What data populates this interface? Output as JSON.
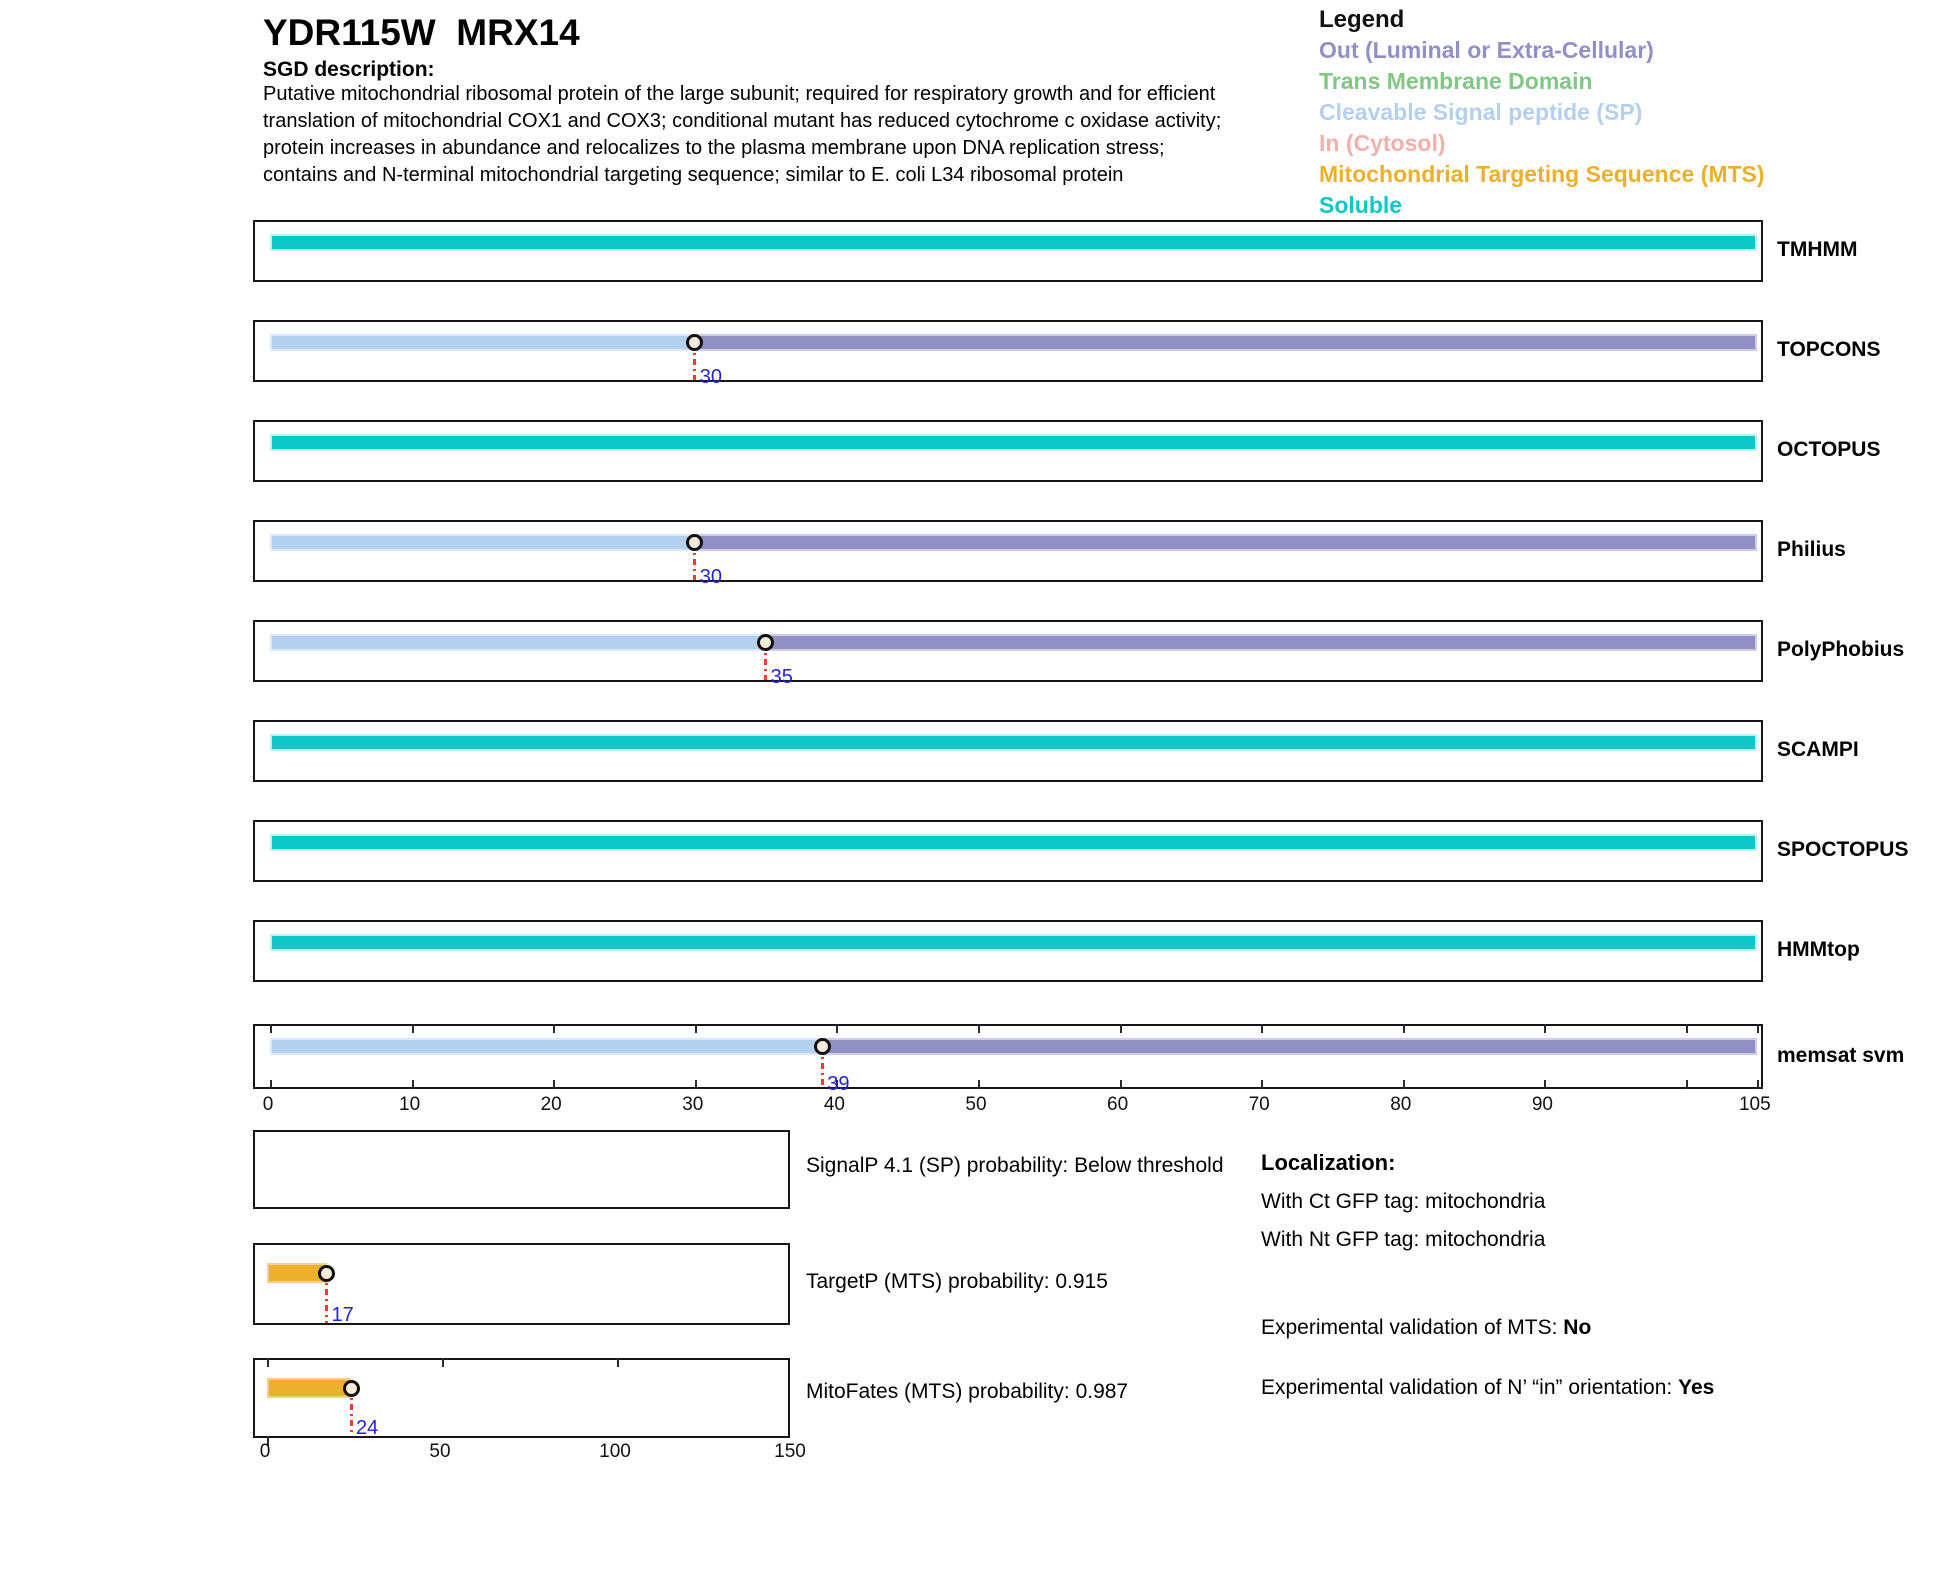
{
  "header": {
    "title": "YDR115W  MRX14",
    "sgd_label": "SGD description:",
    "description": "Putative mitochondrial ribosomal protein of the large subunit; required for respiratory growth and for efficient\ntranslation of mitochondrial COX1 and COX3;  conditional mutant has reduced cytochrome c oxidase activity;\nprotein increases in abundance and relocalizes to the plasma membrane upon DNA replication stress;\ncontains and N-terminal mitochondrial targeting sequence; similar to E. coli L34 ribosomal protein"
  },
  "legend": {
    "heading": "Legend",
    "items": [
      {
        "label": "Out (Luminal or Extra-Cellular)",
        "key": "Out"
      },
      {
        "label": "Trans Membrane Domain",
        "key": "TM"
      },
      {
        "label": "Cleavable Signal peptide (SP)",
        "key": "SP"
      },
      {
        "label": "In (Cytosol)",
        "key": "In"
      },
      {
        "label": "Mitochondrial Targeting Sequence (MTS)",
        "key": "MTS"
      },
      {
        "label": "Soluble",
        "key": "Soluble"
      }
    ]
  },
  "colors": {
    "Out": "#9190c6",
    "TM": "#7fc882",
    "SP": "#b5cfee",
    "In": "#f2b0ab",
    "MTS": "#edb02a",
    "Soluble": "#0dc6c6",
    "borders": {
      "Out": "#cdcde8",
      "TM": "#cfe8d0",
      "SP": "#dbe8f8",
      "In": "#f8d8d5",
      "MTS": "#f5d283",
      "Soluble": "#c5ecee"
    },
    "marker_line": "#ed3b30",
    "marker_number": "#2222dd",
    "marker_fill": "#f8ecd9",
    "box_border": "#161616"
  },
  "chart_data": {
    "type": "bar",
    "residue_axis": {
      "min": 0,
      "max": 105,
      "tick_interval": 10,
      "tick_labels": [
        "0",
        "10",
        "20",
        "30",
        "40",
        "50",
        "60",
        "70",
        "80",
        "90",
        "105"
      ]
    },
    "tracks": [
      {
        "name": "TMHMM",
        "segments": [
          {
            "type": "Soluble",
            "start": 0,
            "end": 105
          }
        ]
      },
      {
        "name": "TOPCONS",
        "segments": [
          {
            "type": "SP",
            "start": 0,
            "end": 30
          },
          {
            "type": "Out",
            "start": 30,
            "end": 105
          }
        ],
        "marker": {
          "pos": 30,
          "label": "30"
        }
      },
      {
        "name": "OCTOPUS",
        "segments": [
          {
            "type": "Soluble",
            "start": 0,
            "end": 105
          }
        ]
      },
      {
        "name": "Philius",
        "segments": [
          {
            "type": "SP",
            "start": 0,
            "end": 30
          },
          {
            "type": "Out",
            "start": 30,
            "end": 105
          }
        ],
        "marker": {
          "pos": 30,
          "label": "30"
        }
      },
      {
        "name": "PolyPhobius",
        "segments": [
          {
            "type": "SP",
            "start": 0,
            "end": 35
          },
          {
            "type": "Out",
            "start": 35,
            "end": 105
          }
        ],
        "marker": {
          "pos": 35,
          "label": "35"
        }
      },
      {
        "name": "SCAMPI",
        "segments": [
          {
            "type": "Soluble",
            "start": 0,
            "end": 105
          }
        ]
      },
      {
        "name": "SPOCTOPUS",
        "segments": [
          {
            "type": "Soluble",
            "start": 0,
            "end": 105
          }
        ]
      },
      {
        "name": "HMMtop",
        "segments": [
          {
            "type": "Soluble",
            "start": 0,
            "end": 105
          }
        ]
      },
      {
        "name": "memsat svm",
        "ruler": true,
        "segments": [
          {
            "type": "SP",
            "start": 0,
            "end": 39
          },
          {
            "type": "Out",
            "start": 39,
            "end": 105
          }
        ],
        "marker": {
          "pos": 39,
          "label": "39"
        }
      }
    ],
    "probability_plots": [
      {
        "caption": "SignalP 4.1 (SP) probability: Below threshold",
        "segments": [],
        "marker": null
      },
      {
        "caption": "TargetP (MTS) probability: 0.915",
        "segments": [
          {
            "type": "MTS",
            "start": 0,
            "end": 17
          }
        ],
        "marker": {
          "pos": 17,
          "label": "17"
        }
      },
      {
        "caption": "MitoFates (MTS) probability: 0.987",
        "segments": [
          {
            "type": "MTS",
            "start": 0,
            "end": 24
          }
        ],
        "marker": {
          "pos": 24,
          "label": "24"
        },
        "ticks_top": [
          0,
          50,
          100
        ],
        "ticks_bottom": [
          0
        ]
      }
    ],
    "probability_axis": {
      "min": 0,
      "max": 150,
      "tick_labels": [
        "0",
        "50",
        "100",
        "150"
      ]
    }
  },
  "localization": {
    "heading": "Localization:",
    "gfp_lines": [
      "With Ct GFP tag: mitochondria",
      "With Nt GFP tag: mitochondria"
    ],
    "mts_prefix": "Experimental validation of MTS: ",
    "mts_value": "No",
    "orientation_prefix": "Experimental validation of N’ “in” orientation: ",
    "orientation_value": "Yes"
  }
}
